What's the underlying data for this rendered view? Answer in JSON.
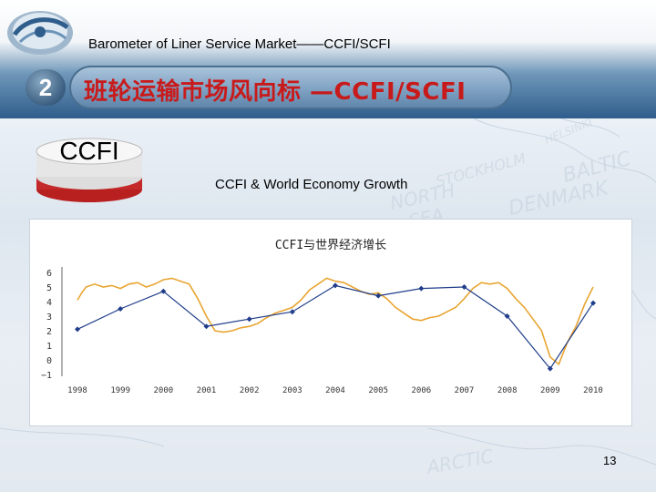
{
  "header": {
    "subtitle": "Barometer of Liner Service Market——CCFI/SCFI",
    "section_number": "2",
    "title": "班轮运输市场风向标 —CCFI/SCFI"
  },
  "badge": {
    "label": "CCFI"
  },
  "caption": "CCFI & World Economy Growth",
  "page_number": "13",
  "colors": {
    "ccfi_line": "#e8a531",
    "growth_line": "#1f3d8a",
    "title_text": "#c81a1a"
  },
  "chart_data": {
    "type": "line",
    "title": "CCFI与世界经济增长",
    "xlabel": "",
    "ylabel": "",
    "ylim": [
      -1,
      6
    ],
    "yticks": [
      "6",
      "5",
      "4",
      "3",
      "2",
      "1",
      "0",
      "−1"
    ],
    "x_ticks": [
      "1998",
      "1999",
      "2000",
      "2001",
      "2002",
      "2003",
      "2004",
      "2005",
      "2006",
      "2007",
      "2008",
      "2009",
      "2010"
    ],
    "grid": false,
    "series": [
      {
        "marker": "diamond",
        "x": [
          1998,
          1999,
          2000,
          2001,
          2002,
          2003,
          2004,
          2005,
          2006,
          2007,
          2008,
          2009,
          2010
        ],
        "values": [
          2.1,
          3.5,
          4.7,
          2.3,
          2.8,
          3.3,
          5.1,
          4.4,
          4.9,
          5.0,
          3.0,
          -0.6,
          3.9
        ]
      },
      {
        "marker": "none",
        "x": [
          1998.0,
          1998.1,
          1998.2,
          1998.4,
          1998.6,
          1998.8,
          1999.0,
          1999.2,
          1999.4,
          1999.6,
          1999.8,
          2000.0,
          2000.2,
          2000.4,
          2000.6,
          2000.8,
          2001.0,
          2001.2,
          2001.4,
          2001.6,
          2001.8,
          2002.0,
          2002.2,
          2002.4,
          2002.6,
          2002.8,
          2003.0,
          2003.2,
          2003.4,
          2003.6,
          2003.8,
          2004.0,
          2004.2,
          2004.4,
          2004.6,
          2004.8,
          2005.0,
          2005.2,
          2005.4,
          2005.6,
          2005.8,
          2006.0,
          2006.2,
          2006.4,
          2006.6,
          2006.8,
          2007.0,
          2007.2,
          2007.4,
          2007.6,
          2007.8,
          2008.0,
          2008.2,
          2008.4,
          2008.6,
          2008.8,
          2009.0,
          2009.2,
          2009.4,
          2009.6,
          2009.8,
          2010.0
        ],
        "values": [
          4.1,
          4.6,
          5.0,
          5.2,
          5.0,
          5.1,
          4.9,
          5.2,
          5.3,
          5.0,
          5.2,
          5.5,
          5.6,
          5.4,
          5.2,
          4.2,
          3.0,
          2.0,
          1.9,
          2.0,
          2.2,
          2.3,
          2.5,
          2.9,
          3.2,
          3.4,
          3.6,
          4.1,
          4.8,
          5.2,
          5.6,
          5.4,
          5.3,
          5.0,
          4.7,
          4.5,
          4.6,
          4.2,
          3.6,
          3.2,
          2.8,
          2.7,
          2.9,
          3.0,
          3.3,
          3.6,
          4.2,
          4.9,
          5.3,
          5.2,
          5.3,
          4.9,
          4.2,
          3.6,
          2.8,
          2.0,
          0.2,
          -0.3,
          1.2,
          2.3,
          3.8,
          5.0
        ]
      }
    ]
  }
}
